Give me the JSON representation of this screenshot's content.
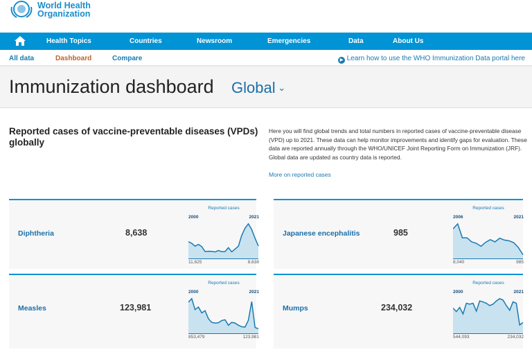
{
  "logo": {
    "text_line1": "World Health",
    "text_line2": "Organization"
  },
  "nav": {
    "items": [
      "Health Topics",
      "Countries",
      "Newsroom",
      "Emergencies",
      "Data",
      "About Us"
    ]
  },
  "subnav": {
    "items": [
      "All data",
      "Dashboard",
      "Compare"
    ],
    "learn": "Learn how to use the WHO Immunization Data portal here"
  },
  "page": {
    "title": "Immunization dashboard",
    "scope": "Global"
  },
  "section": {
    "title": "Reported cases of vaccine-preventable diseases (VPDs) globally",
    "description": "Here you will find global trends and total numbers in reported cases of vaccine-preventable disease (VPD) up to 2021. These data can help monitor improvements and identify gaps for evaluation. These data are reported annually through the WHO/UNICEF Joint Reporting Form on Immunization (JRF). Global data are updated as country data is reported.",
    "more_link": "More on reported cases"
  },
  "colors": {
    "accent": "#0093d5",
    "active": "#c0612b",
    "spark": "#1a7ab0",
    "spark_fill": "#c8e2f0"
  },
  "cards": [
    {
      "name": "Diphtheria",
      "value": "8,638",
      "spark_label": "Reported cases",
      "start_year": "2000",
      "end_year": "2021",
      "start_value": "11,625",
      "end_value": "8,638",
      "series": [
        11625,
        10500,
        8500,
        9800,
        8200,
        4800,
        5000,
        4900,
        4500,
        5500,
        4700,
        4800,
        7500,
        4600,
        6500,
        8500,
        16000,
        21000,
        24000,
        20000,
        14000,
        8638
      ]
    },
    {
      "name": "Japanese encephalitis",
      "value": "985",
      "spark_label": "Reported cases",
      "start_year": "2006",
      "end_year": "2021",
      "start_value": "8,040",
      "end_value": "985",
      "series": [
        8040,
        9400,
        5600,
        5600,
        4500,
        4100,
        3300,
        4400,
        5100,
        4500,
        5500,
        5000,
        4800,
        4300,
        3000,
        985
      ]
    },
    {
      "name": "Measles",
      "value": "123,981",
      "spark_label": "Reported cases",
      "start_year": "2000",
      "end_year": "2021",
      "start_value": "853,479",
      "end_value": "123,981",
      "series": [
        853479,
        950000,
        650000,
        720000,
        560000,
        620000,
        400000,
        300000,
        280000,
        290000,
        350000,
        370000,
        220000,
        300000,
        280000,
        220000,
        180000,
        170000,
        360000,
        870000,
        160000,
        123981
      ]
    },
    {
      "name": "Mumps",
      "value": "234,032",
      "spark_label": "Reported cases",
      "start_year": "2000",
      "end_year": "2021",
      "start_value": "544,093",
      "end_value": "234,032",
      "series": [
        544093,
        470000,
        560000,
        420000,
        650000,
        630000,
        650000,
        480000,
        700000,
        680000,
        650000,
        600000,
        630000,
        700000,
        750000,
        720000,
        600000,
        500000,
        680000,
        650000,
        180000,
        234032
      ]
    }
  ]
}
